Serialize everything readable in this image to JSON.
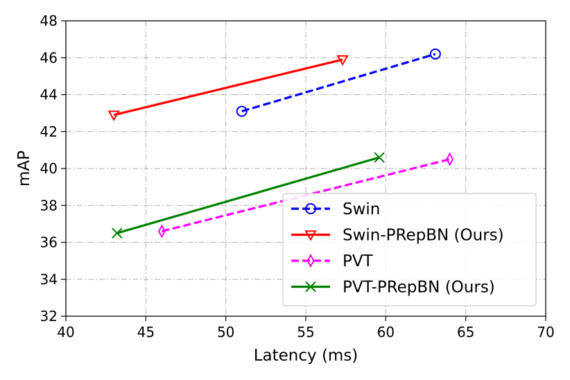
{
  "chart_data": {
    "type": "line",
    "title": "",
    "xlabel": "Latency (ms)",
    "ylabel": "mAP",
    "xlim": [
      40,
      70
    ],
    "ylim": [
      32,
      48
    ],
    "xticks": [
      "40",
      "45",
      "50",
      "55",
      "60",
      "65",
      "70"
    ],
    "yticks": [
      "32",
      "34",
      "36",
      "38",
      "40",
      "42",
      "44",
      "46",
      "48"
    ],
    "grid": true,
    "legend_position": "lower-right",
    "series": [
      {
        "name": "Swin",
        "color": "#0000ff",
        "dash": true,
        "marker": "circle",
        "x": [
          51.0,
          63.1
        ],
        "y": [
          43.1,
          46.2
        ]
      },
      {
        "name": "Swin-PRepBN (Ours)",
        "color": "#ff0000",
        "dash": false,
        "marker": "triangle-down",
        "x": [
          43.0,
          57.3
        ],
        "y": [
          42.9,
          45.9
        ]
      },
      {
        "name": "PVT",
        "color": "#ff00ff",
        "dash": true,
        "marker": "thin-diamond",
        "x": [
          46.0,
          64.0
        ],
        "y": [
          36.6,
          40.5
        ]
      },
      {
        "name": "PVT-PRepBN (Ours)",
        "color": "#008000",
        "dash": false,
        "marker": "x",
        "x": [
          43.2,
          59.6
        ],
        "y": [
          36.5,
          40.6
        ]
      }
    ]
  }
}
